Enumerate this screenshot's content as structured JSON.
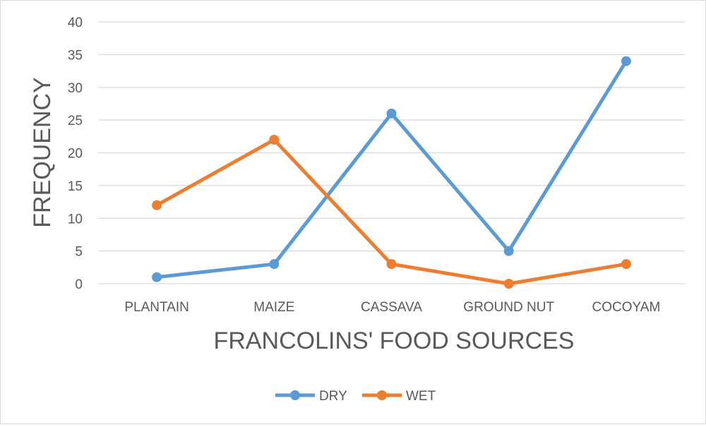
{
  "chart_data": {
    "type": "line",
    "categories": [
      "PLANTAIN",
      "MAIZE",
      "CASSAVA",
      "GROUND NUT",
      "COCOYAM"
    ],
    "series": [
      {
        "name": "DRY",
        "values": [
          1,
          3,
          26,
          5,
          34
        ],
        "color": "#5b9bd5"
      },
      {
        "name": "WET",
        "values": [
          12,
          22,
          3,
          0,
          3
        ],
        "color": "#ed7d31"
      }
    ],
    "title": "",
    "xlabel": "FRANCOLINS' FOOD SOURCES",
    "ylabel": "FREQUENCY",
    "ylim": [
      0,
      40
    ],
    "yticks": [
      0,
      5,
      10,
      15,
      20,
      25,
      30,
      35,
      40
    ],
    "grid": true,
    "legend": "bottom",
    "marker": "circle"
  }
}
